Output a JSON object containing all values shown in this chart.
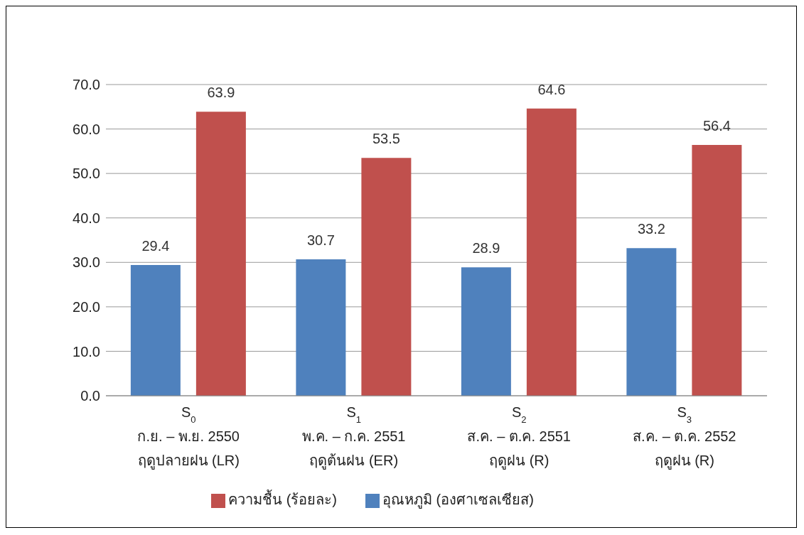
{
  "chart_data": {
    "type": "bar",
    "categories": [
      "S$_{0}$\nก.ย. – พ.ย. 2550\nฤดูปลายฝน (LR)",
      "S$_{1}$\nพ.ค. – ก.ค. 2551\nฤดูต้นฝน (ER)",
      "S$_{2}$\nส.ค. – ต.ค. 2551\nฤดูฝน (R)",
      "S$_{3}$\nส.ค. – ต.ค. 2552\nฤดูฝน (R)"
    ],
    "series": [
      {
        "name": "อุณหภูมิ (องศาเซลเซียส)",
        "color": "#4f81bd",
        "values": [
          29.4,
          30.7,
          28.9,
          33.2
        ]
      },
      {
        "name": "ความชื้น (ร้อยละ)",
        "color": "#c0504d",
        "values": [
          63.9,
          53.5,
          64.6,
          56.4
        ]
      }
    ],
    "ylim": [
      0,
      70
    ],
    "yticks": [
      {
        "value": 0,
        "label": "0.0"
      },
      {
        "value": 10,
        "label": "10.0"
      },
      {
        "value": 20,
        "label": "20.0"
      },
      {
        "value": 30,
        "label": "30.0"
      },
      {
        "value": 40,
        "label": "40.0"
      },
      {
        "value": 50,
        "label": "50.0"
      },
      {
        "value": 60,
        "label": "60.0"
      },
      {
        "value": 70,
        "label": "70.0"
      }
    ],
    "grid": "y",
    "legend": "bottom",
    "data_labels": true
  }
}
